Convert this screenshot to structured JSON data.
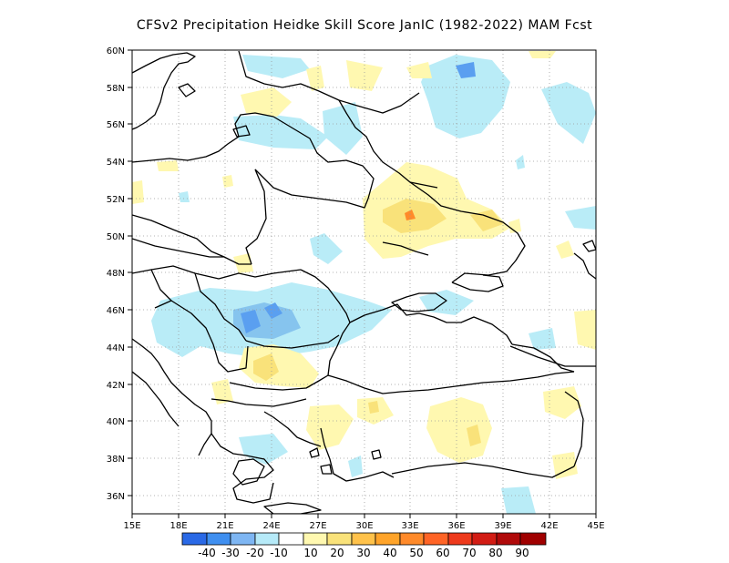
{
  "title": "CFSv2  Precipitation Heidke Skill Score JanIC (1982-2022) MAM Fcst",
  "map": {
    "lon_range": [
      15,
      45
    ],
    "lat_range": [
      35,
      60
    ],
    "x_ticks": [
      "15E",
      "18E",
      "21E",
      "24E",
      "27E",
      "30E",
      "33E",
      "36E",
      "39E",
      "42E",
      "45E"
    ],
    "y_ticks": [
      "36N",
      "38N",
      "40N",
      "42N",
      "44N",
      "46N",
      "48N",
      "50N",
      "52N",
      "54N",
      "56N",
      "58N",
      "60N"
    ],
    "grid": "dotted",
    "colors": {
      "pos_10_20": "#fff8b0",
      "pos_20_30": "#f9e27a",
      "pos_50_60": "#ff8a2a",
      "neg_10_20": "#b9ecf7",
      "neg_20_30": "#86c4ee",
      "neg_30_40": "#5a9ff0"
    }
  },
  "colorbar": {
    "colors": [
      "#2a69e6",
      "#3f8ff0",
      "#7eb6f3",
      "#b6eaf8",
      "#ffffff",
      "#fff8b0",
      "#f9e27a",
      "#ffc24a",
      "#ffa42a",
      "#ff8a2a",
      "#ff6426",
      "#ee3a1c",
      "#d21c14",
      "#b00a0a",
      "#a00000"
    ],
    "labels": [
      "-40",
      "-30",
      "-20",
      "-10",
      "10",
      "20",
      "30",
      "40",
      "50",
      "60",
      "70",
      "80",
      "90"
    ]
  }
}
